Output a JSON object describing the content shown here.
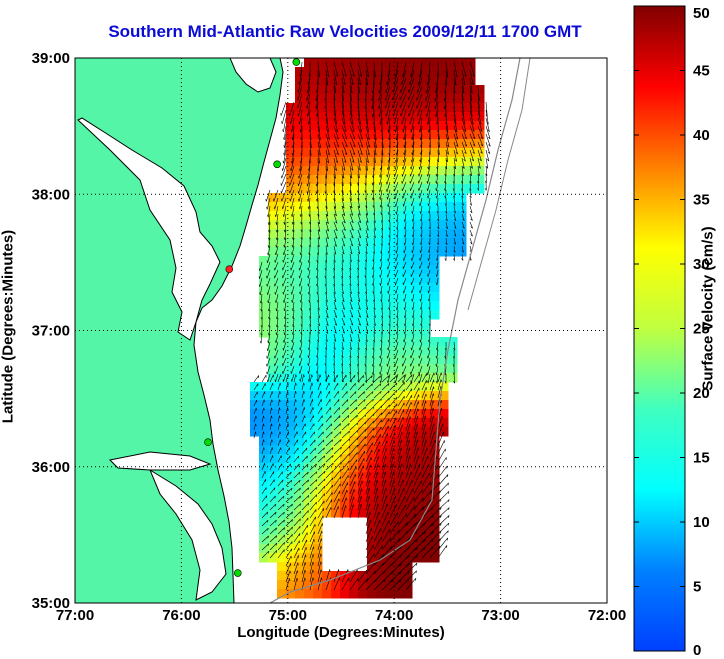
{
  "title": "Southern Mid-Atlantic Raw Velocities 2009/12/11 1700 GMT",
  "xlabel": "Longitude (Degrees:Minutes)",
  "ylabel": "Latitude (Degrees:Minutes)",
  "colorbar_label": "Surface Velocity (cm/s)",
  "colors": {
    "land": "#55f5a8",
    "water": "#ffffff",
    "coast": "#000000",
    "bathy": "#888888",
    "station": "#00dd00",
    "station_alt": "#ff2020",
    "arrow": "#000000"
  },
  "chart_data": {
    "type": "heatmap",
    "x_ticks": [
      "77:00",
      "76:00",
      "75:00",
      "74:00",
      "73:00",
      "72:00"
    ],
    "x_values": [
      -77,
      -76,
      -75,
      -74,
      -73,
      -72
    ],
    "y_ticks": [
      "35:00",
      "36:00",
      "37:00",
      "38:00",
      "39:00"
    ],
    "y_values": [
      35,
      36,
      37,
      38,
      39
    ],
    "xlim": [
      -77,
      -72
    ],
    "ylim": [
      35,
      39
    ],
    "colorbar": {
      "min": 0,
      "max": 50,
      "ticks": [
        0,
        5,
        10,
        15,
        20,
        25,
        30,
        35,
        40,
        45,
        50
      ],
      "colormap": "jet"
    },
    "grid": true,
    "stations": [
      {
        "lon": -74.92,
        "lat": 38.97,
        "color": "green"
      },
      {
        "lon": -75.1,
        "lat": 38.22,
        "color": "green"
      },
      {
        "lon": -75.55,
        "lat": 37.45,
        "color": "red"
      },
      {
        "lon": -75.75,
        "lat": 36.18,
        "color": "green"
      },
      {
        "lon": -75.47,
        "lat": 35.22,
        "color": "green"
      }
    ],
    "speed_regions": [
      {
        "lon": -74.45,
        "lat": 38.55,
        "r": 0.55,
        "speed": 48
      },
      {
        "lon": -74.05,
        "lat": 38.75,
        "r": 0.45,
        "speed": 50
      },
      {
        "lon": -74.7,
        "lat": 38.2,
        "r": 0.4,
        "speed": 40
      },
      {
        "lon": -73.95,
        "lat": 37.85,
        "r": 0.45,
        "speed": 12
      },
      {
        "lon": -74.6,
        "lat": 37.7,
        "r": 0.4,
        "speed": 20
      },
      {
        "lon": -74.3,
        "lat": 37.15,
        "r": 0.4,
        "speed": 22
      },
      {
        "lon": -74.55,
        "lat": 36.9,
        "r": 0.3,
        "speed": 10
      },
      {
        "lon": -74.25,
        "lat": 36.75,
        "r": 0.25,
        "speed": 28
      },
      {
        "lon": -74.9,
        "lat": 37.0,
        "r": 0.3,
        "speed": 28
      },
      {
        "lon": -74.8,
        "lat": 36.15,
        "r": 0.35,
        "speed": 12
      },
      {
        "lon": -74.2,
        "lat": 36.0,
        "r": 0.35,
        "speed": 48
      },
      {
        "lon": -74.25,
        "lat": 35.5,
        "r": 0.45,
        "speed": 50
      },
      {
        "lon": -75.05,
        "lat": 35.55,
        "r": 0.35,
        "speed": 18
      },
      {
        "lon": -74.9,
        "lat": 35.2,
        "r": 0.25,
        "speed": 40
      }
    ]
  }
}
